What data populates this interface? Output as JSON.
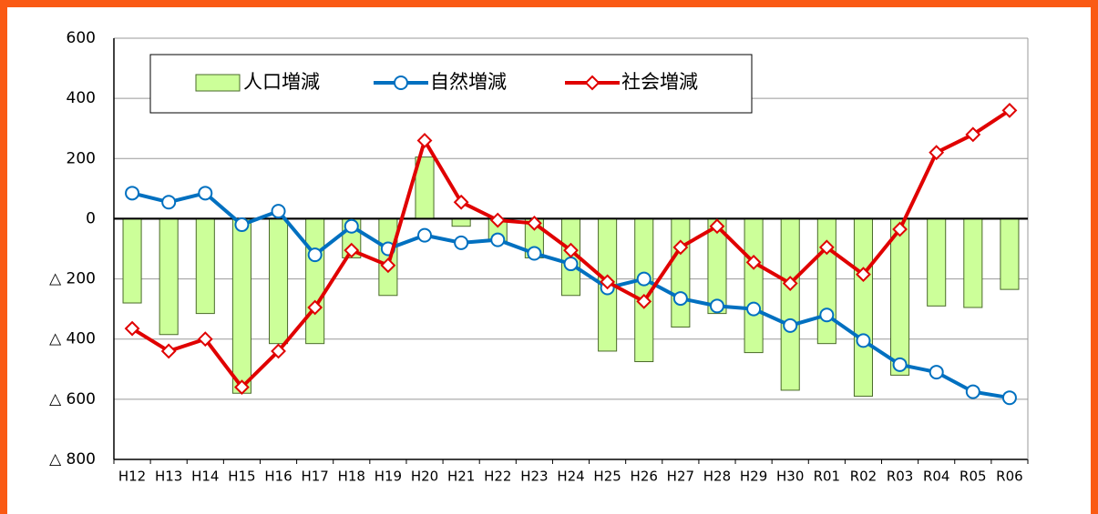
{
  "chart_data": {
    "type": "bar",
    "categories": [
      "H12",
      "H13",
      "H14",
      "H15",
      "H16",
      "H17",
      "H18",
      "H19",
      "H20",
      "H21",
      "H22",
      "H23",
      "H24",
      "H25",
      "H26",
      "H27",
      "H28",
      "H29",
      "H30",
      "R01",
      "R02",
      "R03",
      "R04",
      "R05",
      "R06"
    ],
    "series": [
      {
        "name": "人口増減",
        "type": "bar",
        "color": "#ccff99",
        "values": [
          -280,
          -385,
          -315,
          -580,
          -415,
          -415,
          -130,
          -255,
          205,
          -25,
          -75,
          -130,
          -255,
          -440,
          -475,
          -360,
          -315,
          -445,
          -570,
          -415,
          -590,
          -520,
          -290,
          -295,
          -235
        ]
      },
      {
        "name": "自然増減",
        "type": "line",
        "marker": "circle",
        "color": "#0070c0",
        "values": [
          85,
          55,
          85,
          -20,
          25,
          -120,
          -25,
          -100,
          -55,
          -80,
          -70,
          -115,
          -150,
          -230,
          -200,
          -265,
          -290,
          -300,
          -355,
          -320,
          -405,
          -485,
          -510,
          -575,
          -595
        ]
      },
      {
        "name": "社会増減",
        "type": "line",
        "marker": "diamond",
        "color": "#e00000",
        "values": [
          -365,
          -440,
          -400,
          -560,
          -440,
          -295,
          -105,
          -155,
          260,
          55,
          -5,
          -15,
          -105,
          -210,
          -275,
          -95,
          -25,
          -145,
          -215,
          -95,
          -185,
          -35,
          220,
          280,
          360
        ]
      }
    ],
    "ylim": [
      -800,
      600
    ],
    "yticks": [
      {
        "value": -800,
        "label": "△ 800"
      },
      {
        "value": -600,
        "label": "△ 600"
      },
      {
        "value": -400,
        "label": "△ 400"
      },
      {
        "value": -200,
        "label": "△ 200"
      },
      0,
      200,
      400,
      600
    ],
    "grid": true,
    "legend": "top"
  }
}
